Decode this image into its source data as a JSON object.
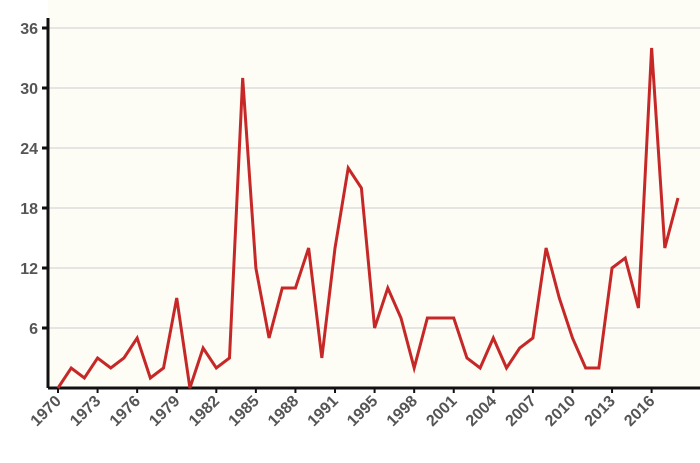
{
  "chart_data": {
    "type": "line",
    "categories": [
      "1970",
      null,
      null,
      "1973",
      null,
      null,
      "1976",
      null,
      null,
      "1979",
      null,
      null,
      "1982",
      null,
      null,
      "1985",
      null,
      null,
      "1988",
      null,
      null,
      "1991",
      null,
      null,
      "1995",
      null,
      null,
      "1998",
      null,
      null,
      "2001",
      null,
      null,
      "2004",
      null,
      null,
      "2007",
      null,
      null,
      "2010",
      null,
      null,
      "2013",
      null,
      null,
      "2016",
      null,
      null
    ],
    "series": [
      {
        "color": "#c62828",
        "values": [
          0,
          2,
          1,
          3,
          2,
          3,
          5,
          1,
          2,
          9,
          0,
          4,
          2,
          3,
          31,
          12,
          5,
          10,
          10,
          14,
          3,
          14,
          22,
          20,
          6,
          10,
          7,
          2,
          7,
          7,
          7,
          3,
          2,
          5,
          2,
          4,
          5,
          14,
          9,
          5,
          2,
          2,
          12,
          13,
          8,
          34,
          14,
          19
        ]
      }
    ],
    "ylim": [
      0,
      37.5
    ],
    "yticks": [
      6,
      12,
      18,
      24,
      30,
      36
    ],
    "grid": true
  }
}
